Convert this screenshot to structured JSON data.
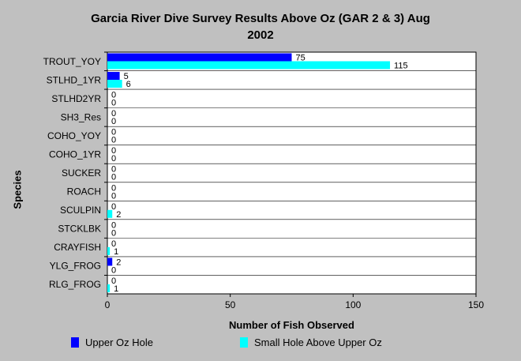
{
  "chart_data": {
    "type": "bar",
    "orientation": "horizontal",
    "title": "Garcia River Dive Survey Results Above Oz (GAR 2 & 3) Aug 2002",
    "title_lines": [
      "Garcia River Dive Survey Results Above Oz (GAR 2 & 3) Aug",
      "2002"
    ],
    "xlabel": "Number of Fish Observed",
    "ylabel": "Species",
    "xlim": [
      0,
      150
    ],
    "xticks": [
      0,
      50,
      100,
      150
    ],
    "grid": "horizontal",
    "legend_position": "bottom",
    "categories": [
      "TROUT_YOY",
      "STLHD_1YR",
      "STLHD2YR",
      "SH3_Res",
      "COHO_YOY",
      "COHO_1YR",
      "SUCKER",
      "ROACH",
      "SCULPIN",
      "STCKLBK",
      "CRAYFISH",
      "YLG_FROG",
      "RLG_FROG"
    ],
    "series": [
      {
        "name": "Upper Oz Hole",
        "color": "#0000ff",
        "values": [
          75,
          5,
          0,
          0,
          0,
          0,
          0,
          0,
          0,
          0,
          0,
          2,
          0
        ]
      },
      {
        "name": "Small Hole Above Upper Oz",
        "color": "#00ffff",
        "values": [
          115,
          6,
          0,
          0,
          0,
          0,
          0,
          0,
          2,
          0,
          1,
          0,
          1
        ]
      }
    ]
  }
}
